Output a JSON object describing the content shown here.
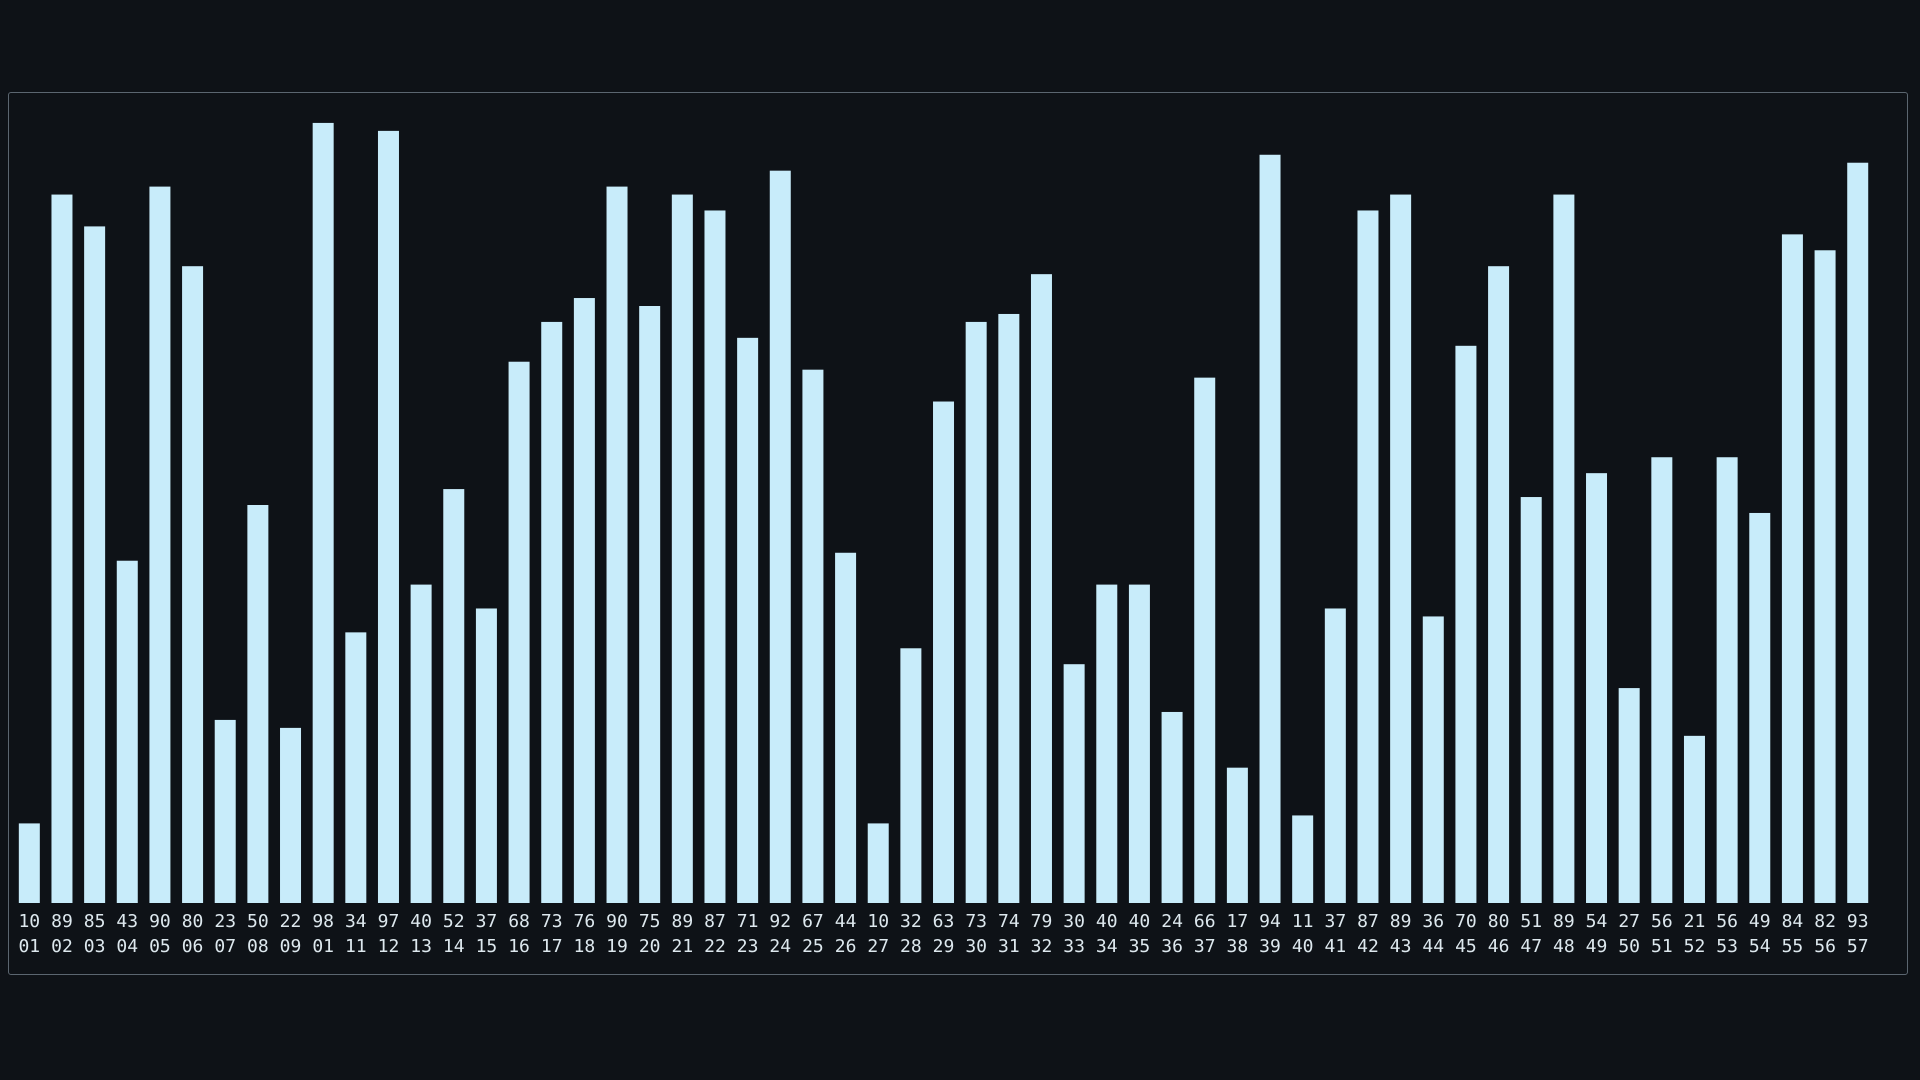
{
  "chart_data": {
    "type": "bar",
    "title": "",
    "xlabel": "",
    "ylabel": "",
    "ylim": [
      0,
      100
    ],
    "grid": false,
    "legend": "none",
    "bar_color": "#c8ecfa",
    "background_color": "#0e1217",
    "value_labels": [
      "10",
      "89",
      "85",
      "43",
      "90",
      "80",
      "23",
      "50",
      "22",
      "98",
      "34",
      "97",
      "40",
      "52",
      "37",
      "68",
      "73",
      "76",
      "90",
      "75",
      "89",
      "87",
      "71",
      "92",
      "67",
      "44",
      "10",
      "32",
      "63",
      "73",
      "74",
      "79",
      "30",
      "40",
      "40",
      "24",
      "66",
      "17",
      "94",
      "11",
      "37",
      "87",
      "89",
      "36",
      "70",
      "80",
      "51",
      "89",
      "54",
      "27",
      "56",
      "21",
      "56",
      "49",
      "84",
      "82",
      "93"
    ],
    "categories": [
      "01",
      "02",
      "03",
      "04",
      "05",
      "06",
      "07",
      "08",
      "09",
      "01",
      "11",
      "12",
      "13",
      "14",
      "15",
      "16",
      "17",
      "18",
      "19",
      "20",
      "21",
      "22",
      "23",
      "24",
      "25",
      "26",
      "27",
      "28",
      "29",
      "30",
      "31",
      "32",
      "33",
      "34",
      "35",
      "36",
      "37",
      "38",
      "39",
      "40",
      "41",
      "42",
      "43",
      "44",
      "45",
      "46",
      "47",
      "48",
      "49",
      "50",
      "51",
      "52",
      "53",
      "54",
      "55",
      "56",
      "57"
    ],
    "values": [
      10,
      89,
      85,
      43,
      90,
      80,
      23,
      50,
      22,
      98,
      34,
      97,
      40,
      52,
      37,
      68,
      73,
      76,
      90,
      75,
      89,
      87,
      71,
      92,
      67,
      44,
      10,
      32,
      63,
      73,
      74,
      79,
      30,
      40,
      40,
      24,
      66,
      17,
      94,
      11,
      37,
      87,
      89,
      36,
      70,
      80,
      51,
      89,
      54,
      27,
      56,
      21,
      56,
      49,
      84,
      82,
      93
    ]
  }
}
